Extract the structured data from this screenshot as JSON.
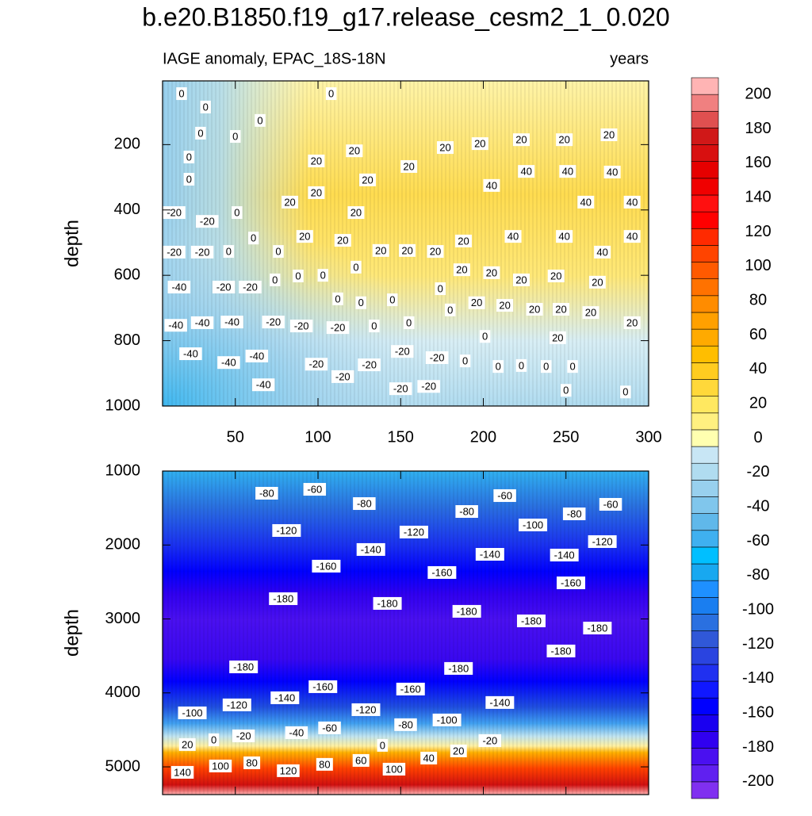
{
  "title": "b.e20.B1850.f19_g17.release_cesm2_1_0.020",
  "chart_data": [
    {
      "type": "contour",
      "subtitle_left": "IAGE anomaly, EPAC_18S-18N",
      "subtitle_right": "years",
      "ylabel": "depth",
      "xlim": [
        6,
        300
      ],
      "ylim": [
        5,
        1000
      ],
      "y_reversed": true,
      "xticks": [
        50,
        100,
        150,
        200,
        250,
        300
      ],
      "xtick_labels": true,
      "yticks": [
        200,
        400,
        600,
        800,
        1000
      ],
      "contour_labels": [
        {
          "x": 17.5,
          "y": 44,
          "value": 0
        },
        {
          "x": 32,
          "y": 85,
          "value": 0
        },
        {
          "x": 65,
          "y": 126,
          "value": 0
        },
        {
          "x": 108,
          "y": 44,
          "value": 0
        },
        {
          "x": 29,
          "y": 165,
          "value": 0
        },
        {
          "x": 50,
          "y": 175,
          "value": 0
        },
        {
          "x": 22,
          "y": 238,
          "value": 0
        },
        {
          "x": 22,
          "y": 306,
          "value": 0
        },
        {
          "x": 99,
          "y": 250,
          "value": 20
        },
        {
          "x": 122,
          "y": 219,
          "value": 20
        },
        {
          "x": 130,
          "y": 308,
          "value": 20
        },
        {
          "x": 155,
          "y": 267,
          "value": 20
        },
        {
          "x": 177,
          "y": 209,
          "value": 20
        },
        {
          "x": 198,
          "y": 197,
          "value": 20
        },
        {
          "x": 223,
          "y": 185,
          "value": 20
        },
        {
          "x": 249,
          "y": 185,
          "value": 20
        },
        {
          "x": 276,
          "y": 170,
          "value": 20
        },
        {
          "x": 205,
          "y": 325,
          "value": 40
        },
        {
          "x": 226,
          "y": 282,
          "value": 40
        },
        {
          "x": 251,
          "y": 282,
          "value": 40
        },
        {
          "x": 278,
          "y": 284,
          "value": 40
        },
        {
          "x": 262,
          "y": 376,
          "value": 40
        },
        {
          "x": 290,
          "y": 376,
          "value": 40
        },
        {
          "x": 83,
          "y": 376,
          "value": 20
        },
        {
          "x": 99,
          "y": 347,
          "value": 20
        },
        {
          "x": 123,
          "y": 408,
          "value": 20
        },
        {
          "x": 13,
          "y": 408,
          "value": -20
        },
        {
          "x": 33,
          "y": 435,
          "value": -20
        },
        {
          "x": 51,
          "y": 408,
          "value": 0
        },
        {
          "x": 61,
          "y": 486,
          "value": 0
        },
        {
          "x": 92,
          "y": 481,
          "value": 20
        },
        {
          "x": 115,
          "y": 493,
          "value": 20
        },
        {
          "x": 138,
          "y": 524,
          "value": 20
        },
        {
          "x": 154,
          "y": 524,
          "value": 20
        },
        {
          "x": 171,
          "y": 527,
          "value": 20
        },
        {
          "x": 188,
          "y": 495,
          "value": 20
        },
        {
          "x": 218,
          "y": 481,
          "value": 40
        },
        {
          "x": 249,
          "y": 481,
          "value": 40
        },
        {
          "x": 290,
          "y": 481,
          "value": 40
        },
        {
          "x": 272,
          "y": 529,
          "value": 40
        },
        {
          "x": 13,
          "y": 529,
          "value": -20
        },
        {
          "x": 30,
          "y": 529,
          "value": -20
        },
        {
          "x": 46,
          "y": 527,
          "value": 0
        },
        {
          "x": 76,
          "y": 527,
          "value": 0
        },
        {
          "x": 123,
          "y": 575,
          "value": 0
        },
        {
          "x": 16,
          "y": 636,
          "value": -40
        },
        {
          "x": 43,
          "y": 636,
          "value": -20
        },
        {
          "x": 59,
          "y": 636,
          "value": -20
        },
        {
          "x": 74,
          "y": 614,
          "value": 0
        },
        {
          "x": 88,
          "y": 602,
          "value": 0
        },
        {
          "x": 103,
          "y": 600,
          "value": 0
        },
        {
          "x": 174,
          "y": 641,
          "value": 0
        },
        {
          "x": 187,
          "y": 583,
          "value": 20
        },
        {
          "x": 205,
          "y": 592,
          "value": 20
        },
        {
          "x": 223,
          "y": 614,
          "value": 20
        },
        {
          "x": 244,
          "y": 602,
          "value": 20
        },
        {
          "x": 269,
          "y": 621,
          "value": 20
        },
        {
          "x": 112,
          "y": 672,
          "value": 0
        },
        {
          "x": 126,
          "y": 684,
          "value": 0
        },
        {
          "x": 145,
          "y": 675,
          "value": 0
        },
        {
          "x": 180,
          "y": 706,
          "value": 0
        },
        {
          "x": 196,
          "y": 684,
          "value": 20
        },
        {
          "x": 213,
          "y": 692,
          "value": 20
        },
        {
          "x": 231,
          "y": 704,
          "value": 20
        },
        {
          "x": 247,
          "y": 704,
          "value": 20
        },
        {
          "x": 265,
          "y": 714,
          "value": 20
        },
        {
          "x": 14,
          "y": 753,
          "value": -40
        },
        {
          "x": 30,
          "y": 745,
          "value": -40
        },
        {
          "x": 48,
          "y": 743,
          "value": -40
        },
        {
          "x": 73,
          "y": 743,
          "value": -20
        },
        {
          "x": 90,
          "y": 755,
          "value": -20
        },
        {
          "x": 112,
          "y": 760,
          "value": -20
        },
        {
          "x": 134,
          "y": 755,
          "value": 0
        },
        {
          "x": 155,
          "y": 745,
          "value": 0
        },
        {
          "x": 201,
          "y": 787,
          "value": 0
        },
        {
          "x": 245,
          "y": 791,
          "value": 20
        },
        {
          "x": 290,
          "y": 745,
          "value": 20
        },
        {
          "x": 23,
          "y": 840,
          "value": -40
        },
        {
          "x": 63,
          "y": 847,
          "value": -40
        },
        {
          "x": 46,
          "y": 867,
          "value": -40
        },
        {
          "x": 67,
          "y": 935,
          "value": -40
        },
        {
          "x": 99,
          "y": 872,
          "value": -20
        },
        {
          "x": 115,
          "y": 910,
          "value": -20
        },
        {
          "x": 131,
          "y": 874,
          "value": -20
        },
        {
          "x": 151,
          "y": 833,
          "value": -20
        },
        {
          "x": 172,
          "y": 852,
          "value": -20
        },
        {
          "x": 189,
          "y": 862,
          "value": 0
        },
        {
          "x": 209,
          "y": 879,
          "value": 0
        },
        {
          "x": 223,
          "y": 876,
          "value": 0
        },
        {
          "x": 238,
          "y": 879,
          "value": 0
        },
        {
          "x": 254,
          "y": 879,
          "value": 0
        },
        {
          "x": 150,
          "y": 947,
          "value": -20
        },
        {
          "x": 167,
          "y": 940,
          "value": -20
        },
        {
          "x": 250,
          "y": 952,
          "value": 0
        },
        {
          "x": 286,
          "y": 957,
          "value": 0
        }
      ]
    },
    {
      "type": "contour",
      "ylabel": "depth",
      "xlim": [
        6,
        300
      ],
      "ylim": [
        1000,
        5375
      ],
      "y_reversed": true,
      "xticks": [
        50,
        100,
        150,
        200,
        250,
        300
      ],
      "xtick_labels": false,
      "yticks": [
        1000,
        2000,
        3000,
        4000,
        5000
      ],
      "contour_labels": [
        {
          "x": 69,
          "y": 1300,
          "value": -80
        },
        {
          "x": 98,
          "y": 1247,
          "value": -60
        },
        {
          "x": 128,
          "y": 1440,
          "value": -80
        },
        {
          "x": 190,
          "y": 1547,
          "value": -80
        },
        {
          "x": 213,
          "y": 1332,
          "value": -60
        },
        {
          "x": 255,
          "y": 1579,
          "value": -80
        },
        {
          "x": 277,
          "y": 1450,
          "value": -60
        },
        {
          "x": 230,
          "y": 1729,
          "value": -100
        },
        {
          "x": 272,
          "y": 1954,
          "value": -120
        },
        {
          "x": 81,
          "y": 1804,
          "value": -120
        },
        {
          "x": 158,
          "y": 1825,
          "value": -120
        },
        {
          "x": 132,
          "y": 2061,
          "value": -140
        },
        {
          "x": 204,
          "y": 2126,
          "value": -140
        },
        {
          "x": 249,
          "y": 2136,
          "value": -140
        },
        {
          "x": 105,
          "y": 2286,
          "value": -160
        },
        {
          "x": 175,
          "y": 2372,
          "value": -160
        },
        {
          "x": 253,
          "y": 2512,
          "value": -160
        },
        {
          "x": 79,
          "y": 2726,
          "value": -180
        },
        {
          "x": 142,
          "y": 2790,
          "value": -180
        },
        {
          "x": 190,
          "y": 2897,
          "value": -180
        },
        {
          "x": 229,
          "y": 3026,
          "value": -180
        },
        {
          "x": 269,
          "y": 3123,
          "value": -180
        },
        {
          "x": 247,
          "y": 3433,
          "value": -180
        },
        {
          "x": 185,
          "y": 3669,
          "value": -180
        },
        {
          "x": 55,
          "y": 3648,
          "value": -180
        },
        {
          "x": 103,
          "y": 3916,
          "value": -160
        },
        {
          "x": 156,
          "y": 3948,
          "value": -160
        },
        {
          "x": 80,
          "y": 4066,
          "value": -140
        },
        {
          "x": 51,
          "y": 4162,
          "value": -120
        },
        {
          "x": 210,
          "y": 4130,
          "value": -140
        },
        {
          "x": 129,
          "y": 4227,
          "value": -120
        },
        {
          "x": 24,
          "y": 4270,
          "value": -100
        },
        {
          "x": 178,
          "y": 4366,
          "value": -100
        },
        {
          "x": 153,
          "y": 4430,
          "value": -80
        },
        {
          "x": 107,
          "y": 4473,
          "value": -60
        },
        {
          "x": 87,
          "y": 4538,
          "value": -40
        },
        {
          "x": 55,
          "y": 4581,
          "value": -20
        },
        {
          "x": 37,
          "y": 4634,
          "value": 0
        },
        {
          "x": 21,
          "y": 4698,
          "value": 20
        },
        {
          "x": 139,
          "y": 4709,
          "value": 0
        },
        {
          "x": 204,
          "y": 4645,
          "value": -20
        },
        {
          "x": 185,
          "y": 4784,
          "value": 20
        },
        {
          "x": 167,
          "y": 4881,
          "value": 40
        },
        {
          "x": 146,
          "y": 5031,
          "value": 100
        },
        {
          "x": 126,
          "y": 4913,
          "value": 60
        },
        {
          "x": 104,
          "y": 4966,
          "value": 80
        },
        {
          "x": 82,
          "y": 5052,
          "value": 120
        },
        {
          "x": 60,
          "y": 4945,
          "value": 80
        },
        {
          "x": 41,
          "y": 4988,
          "value": 100
        },
        {
          "x": 18,
          "y": 5074,
          "value": 140
        }
      ]
    }
  ],
  "colorbar": {
    "levels": [
      -200,
      -190,
      -180,
      -170,
      -160,
      -150,
      -140,
      -130,
      -120,
      -110,
      -100,
      -90,
      -80,
      -70,
      -60,
      -50,
      -40,
      -30,
      -20,
      -10,
      0,
      10,
      20,
      30,
      40,
      50,
      60,
      70,
      80,
      90,
      100,
      110,
      120,
      130,
      140,
      150,
      160,
      170,
      180,
      190,
      200
    ],
    "colors": [
      "#8030f0",
      "#6020f0",
      "#4a10f0",
      "#3000f0",
      "#1a00f0",
      "#0000ff",
      "#1018ff",
      "#2030f0",
      "#2a44e0",
      "#3058d8",
      "#2a70e0",
      "#1a7ef0",
      "#1e90ff",
      "#18a8f0",
      "#00bfff",
      "#3fb0f0",
      "#60b8ea",
      "#80c6ec",
      "#98d0ee",
      "#b0dcf0",
      "#c8e6f5",
      "#ffffb0",
      "#fff080",
      "#ffe860",
      "#ffd83a",
      "#ffcc20",
      "#ffbe00",
      "#ffaa00",
      "#ffa000",
      "#ff8c00",
      "#ff7200",
      "#ff5a00",
      "#ff4400",
      "#ff2a00",
      "#ff0000",
      "#ff1010",
      "#f00000",
      "#e60000",
      "#d81010",
      "#d01818",
      "#e05050",
      "#f08080",
      "#ffb4b4"
    ],
    "ticks": [
      -200,
      -180,
      -160,
      -140,
      -120,
      -100,
      -80,
      -60,
      -40,
      -20,
      0,
      20,
      40,
      60,
      80,
      100,
      120,
      140,
      160,
      180,
      200
    ]
  }
}
